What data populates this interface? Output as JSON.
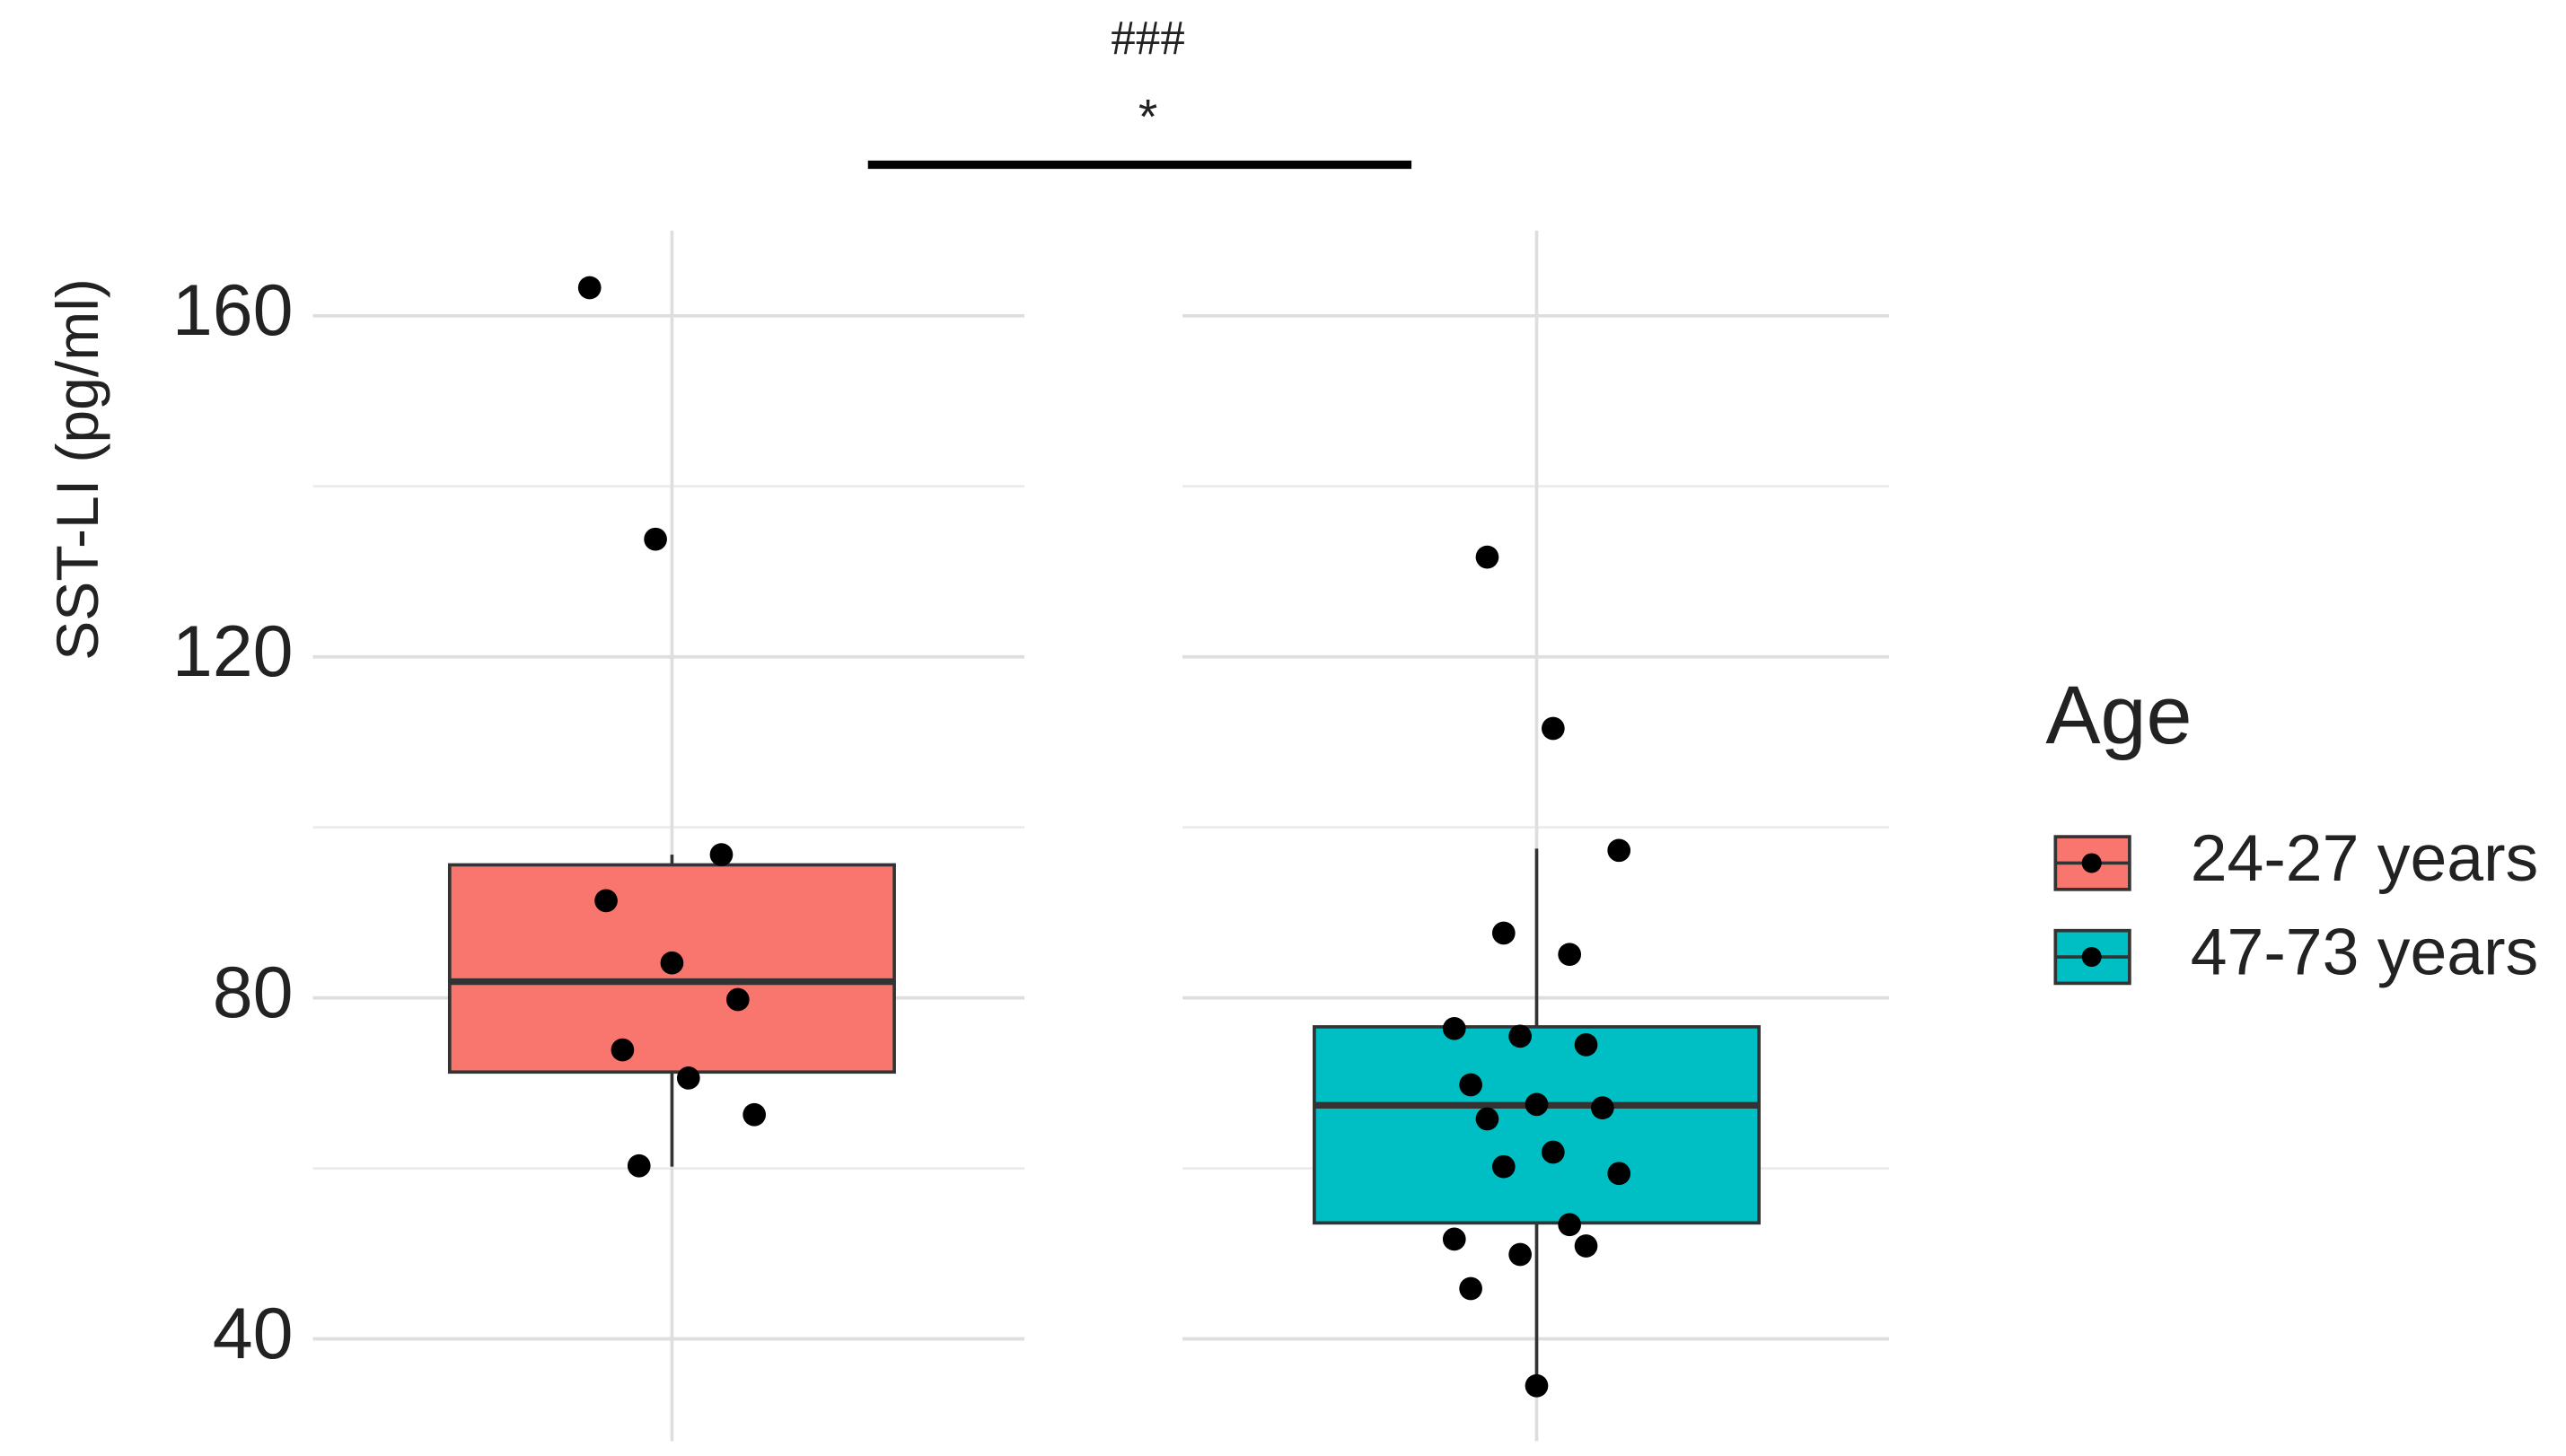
{
  "chart_data": {
    "type": "box",
    "y_label": "SST-LI (pg/ml)",
    "legend_title": "Age",
    "annotations": [
      "###",
      "*"
    ],
    "ylim": [
      28,
      170
    ],
    "yticks": [
      40,
      80,
      120,
      160
    ],
    "minor_yticks": [
      60,
      100,
      140
    ],
    "grid": true,
    "series": [
      {
        "name": "24-27 years",
        "color": "#F8766D",
        "box": {
          "whisker_low": 60.2,
          "q1": 71.3,
          "median": 81.9,
          "q3": 95.6,
          "whisker_high": 96.8
        },
        "points": [
          163.3,
          133.8,
          96.8,
          91.4,
          84.1,
          79.8,
          73.9,
          70.6,
          66.3,
          60.3
        ]
      },
      {
        "name": "47-73 years",
        "color": "#00BFC4",
        "box": {
          "whisker_low": 35.1,
          "q1": 53.6,
          "median": 67.4,
          "q3": 76.6,
          "whisker_high": 97.5
        },
        "points": [
          131.7,
          111.6,
          97.3,
          87.6,
          85.1,
          76.4,
          75.5,
          74.5,
          69.8,
          67.5,
          67.1,
          65.8,
          61.9,
          59.4,
          60.2,
          53.4,
          51.7,
          49.9,
          50.9,
          45.9,
          34.5
        ]
      }
    ]
  }
}
